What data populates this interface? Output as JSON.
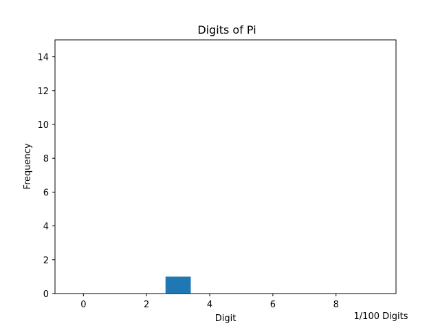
{
  "chart_data": {
    "type": "bar",
    "title": "Digits of Pi",
    "xlabel": "Digit",
    "ylabel": "Frequency",
    "x": [
      0,
      1,
      2,
      3,
      4,
      5,
      6,
      7,
      8,
      9
    ],
    "values": [
      0,
      0,
      0,
      1,
      0,
      0,
      0,
      0,
      0,
      0
    ],
    "bar_width": 0.8,
    "xlim": [
      -0.9,
      9.9
    ],
    "ylim": [
      0,
      15
    ],
    "xticks": [
      0,
      2,
      4,
      6,
      8
    ],
    "yticks": [
      0,
      2,
      4,
      6,
      8,
      10,
      12,
      14
    ],
    "bar_color": "#1f77b4",
    "grid": false,
    "annotation": "1/100 Digits"
  }
}
